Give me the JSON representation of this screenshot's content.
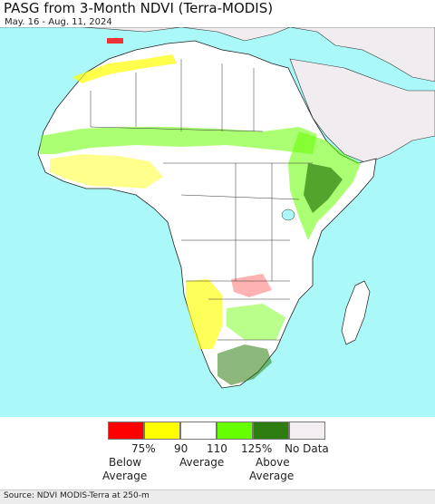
{
  "header": {
    "title": "PASG from 3-Month NDVI (Terra-MODIS)",
    "date_range": "May. 16 - Aug. 11, 2024"
  },
  "legend": {
    "bins": [
      {
        "label": "Below 75%",
        "color": "#ff0000"
      },
      {
        "label": "75-90%",
        "color": "#ffff00"
      },
      {
        "label": "90-110%",
        "color": "#ffffff"
      },
      {
        "label": "110-125%",
        "color": "#66ff00"
      },
      {
        "label": "Above 125%",
        "color": "#2e7d10"
      },
      {
        "label": "No Data",
        "color": "#f2eef2"
      }
    ],
    "tick_75": "75%",
    "tick_90": "90",
    "tick_110": "110",
    "tick_125": "125%",
    "no_data": "No Data",
    "below_line1": "Below",
    "below_line2": "Average",
    "average": "Average",
    "above_line1": "Above",
    "above_line2": "Average"
  },
  "footer": {
    "source": "Source: NDVI MODIS-Terra at 250-m"
  },
  "colors": {
    "ocean": "#aaf8f8",
    "no_data_land": "#f0ecf0",
    "border": "#222222",
    "near_normal": "#ffffff",
    "below": "#ffff00",
    "far_below": "#ff0000",
    "above": "#66ff00",
    "far_above": "#2e7d10"
  }
}
